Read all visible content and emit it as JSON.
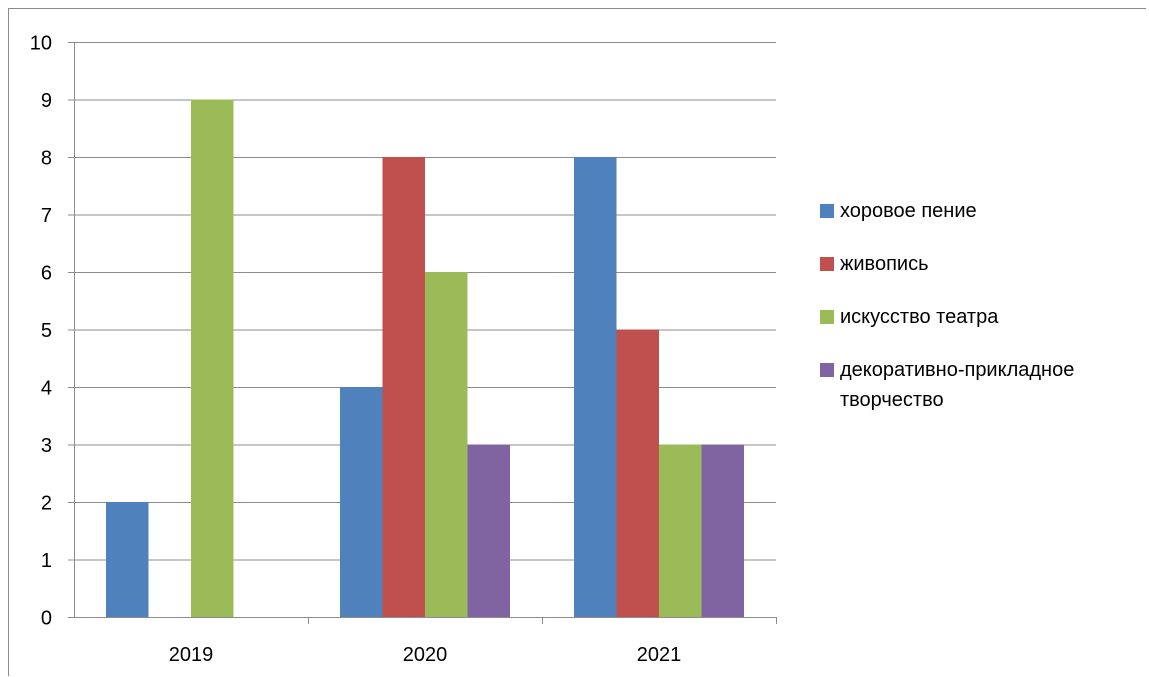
{
  "chart_data": {
    "type": "bar",
    "title": "",
    "xlabel": "",
    "ylabel": "",
    "categories": [
      "2019",
      "2020",
      "2021"
    ],
    "series": [
      {
        "name": "хоровое пение",
        "color": "#4F81BD",
        "values": [
          2,
          4,
          8
        ]
      },
      {
        "name": "живопись",
        "color": "#C0504D",
        "values": [
          0,
          8,
          5
        ]
      },
      {
        "name": "искусство театра",
        "color": "#9BBB59",
        "values": [
          9,
          6,
          3
        ]
      },
      {
        "name": "декоративно-прикладное творчество",
        "color": "#8064A2",
        "values": [
          0,
          3,
          3
        ]
      }
    ],
    "ylim": [
      0,
      10
    ],
    "yticks": [
      "0",
      "1",
      "2",
      "3",
      "4",
      "5",
      "6",
      "7",
      "8",
      "9",
      "10"
    ],
    "grid": true,
    "legend_position": "right"
  }
}
